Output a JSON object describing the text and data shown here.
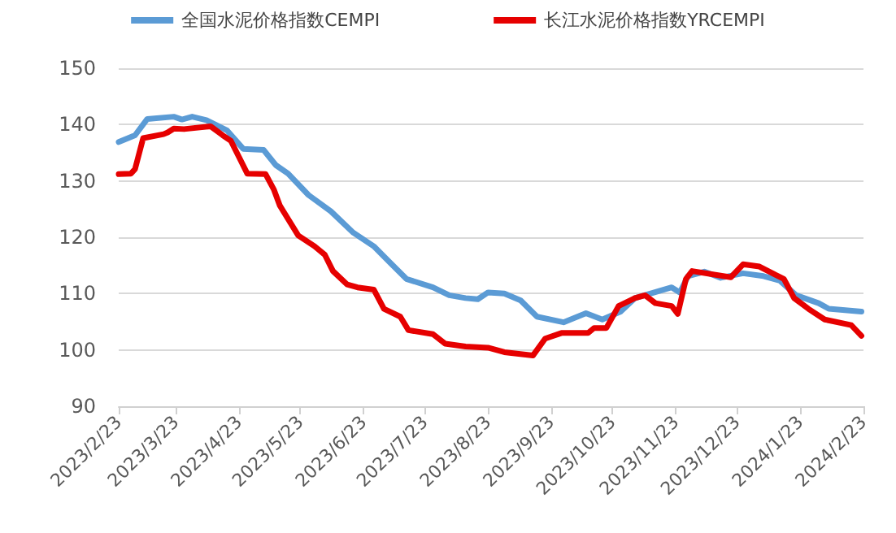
{
  "chart_data": {
    "type": "line",
    "legend": "top",
    "grid": "y",
    "marker": "none",
    "line_style": "solid",
    "xlim": [
      "2023-02-23",
      "2024-02-23"
    ],
    "xticks": [
      {
        "value": "2023-02-23",
        "label": "2023/2/23"
      },
      {
        "value": "2023-03-23",
        "label": "2023/3/23"
      },
      {
        "value": "2023-04-23",
        "label": "2023/4/23"
      },
      {
        "value": "2023-05-23",
        "label": "2023/5/23"
      },
      {
        "value": "2023-06-23",
        "label": "2023/6/23"
      },
      {
        "value": "2023-07-23",
        "label": "2023/7/23"
      },
      {
        "value": "2023-08-23",
        "label": "2023/8/23"
      },
      {
        "value": "2023-09-23",
        "label": "2023/9/23"
      },
      {
        "value": "2023-10-23",
        "label": "2023/10/23"
      },
      {
        "value": "2023-11-23",
        "label": "2023/11/23"
      },
      {
        "value": "2023-12-23",
        "label": "2023/12/23"
      },
      {
        "value": "2024-01-23",
        "label": "2024/1/23"
      },
      {
        "value": "2024-02-23",
        "label": "2024/2/23"
      }
    ],
    "ylim": [
      90,
      150
    ],
    "yticks": [
      90,
      100,
      110,
      120,
      130,
      140,
      150
    ],
    "series": [
      {
        "name": "全国水泥价格指数CEMPI",
        "color": "#5b9bd5",
        "x": [
          "2023-02-23",
          "2023-03-03",
          "2023-03-09",
          "2023-03-22",
          "2023-03-26",
          "2023-03-31",
          "2023-04-07",
          "2023-04-17",
          "2023-04-25",
          "2023-05-05",
          "2023-05-11",
          "2023-05-17",
          "2023-05-27",
          "2023-06-07",
          "2023-06-18",
          "2023-06-28",
          "2023-07-06",
          "2023-07-14",
          "2023-07-27",
          "2023-08-04",
          "2023-08-12",
          "2023-08-18",
          "2023-08-23",
          "2023-08-31",
          "2023-09-08",
          "2023-09-16",
          "2023-09-29",
          "2023-10-10",
          "2023-10-18",
          "2023-10-27",
          "2023-11-03",
          "2023-11-21",
          "2023-11-25",
          "2023-11-29",
          "2023-12-07",
          "2023-12-15",
          "2023-12-26",
          "2024-01-05",
          "2024-01-13",
          "2024-01-21",
          "2024-02-01",
          "2024-02-06",
          "2024-02-22"
        ],
        "values": [
          136.9,
          138.1,
          141.0,
          141.4,
          140.9,
          141.4,
          140.8,
          139.0,
          135.7,
          135.5,
          132.8,
          131.3,
          127.5,
          124.6,
          120.8,
          118.4,
          115.5,
          112.6,
          111.1,
          109.7,
          109.2,
          109.0,
          110.2,
          110.0,
          108.8,
          105.9,
          104.9,
          106.5,
          105.4,
          106.8,
          109.2,
          111.1,
          110.2,
          113.1,
          113.9,
          112.8,
          113.6,
          113.1,
          112.3,
          109.7,
          108.3,
          107.3,
          106.8
        ]
      },
      {
        "name": "长江水泥价格指数YRCEMPI",
        "color": "#e60000",
        "x": [
          "2023-02-23",
          "2023-03-01",
          "2023-03-03",
          "2023-03-07",
          "2023-03-17",
          "2023-03-19",
          "2023-03-22",
          "2023-03-27",
          "2023-04-09",
          "2023-04-15",
          "2023-04-19",
          "2023-04-23",
          "2023-04-27",
          "2023-05-06",
          "2023-05-10",
          "2023-05-13",
          "2023-05-22",
          "2023-05-30",
          "2023-06-04",
          "2023-06-08",
          "2023-06-15",
          "2023-06-20",
          "2023-06-28",
          "2023-07-03",
          "2023-07-11",
          "2023-07-15",
          "2023-07-27",
          "2023-08-02",
          "2023-08-12",
          "2023-08-23",
          "2023-08-31",
          "2023-09-14",
          "2023-09-20",
          "2023-09-28",
          "2023-10-11",
          "2023-10-14",
          "2023-10-20",
          "2023-10-26",
          "2023-11-03",
          "2023-11-08",
          "2023-11-13",
          "2023-11-21",
          "2023-11-24",
          "2023-11-28",
          "2023-12-01",
          "2023-12-20",
          "2023-12-26",
          "2024-01-03",
          "2024-01-11",
          "2024-01-15",
          "2024-01-20",
          "2024-01-27",
          "2024-02-04",
          "2024-02-17",
          "2024-02-22"
        ],
        "values": [
          131.2,
          131.3,
          132.1,
          137.6,
          138.3,
          138.6,
          139.3,
          139.2,
          139.7,
          138.1,
          137.1,
          134.2,
          131.3,
          131.2,
          128.5,
          125.6,
          120.3,
          118.4,
          116.9,
          114.0,
          111.6,
          111.1,
          110.7,
          107.3,
          105.9,
          103.5,
          102.8,
          101.1,
          100.6,
          100.4,
          99.6,
          99.0,
          102.0,
          103.0,
          103.0,
          103.9,
          103.9,
          107.8,
          109.2,
          109.7,
          108.3,
          107.8,
          106.4,
          112.6,
          114.0,
          112.9,
          115.2,
          114.8,
          113.3,
          112.6,
          109.2,
          107.3,
          105.4,
          104.4,
          102.5
        ]
      }
    ]
  }
}
